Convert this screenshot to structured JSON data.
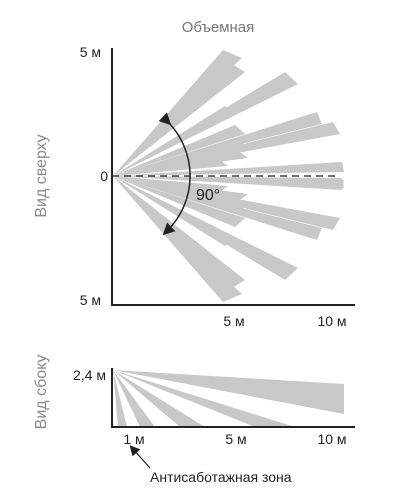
{
  "diagram": {
    "title": "Объемная",
    "top_view": {
      "label": "Вид сверху",
      "y_top": "5 м",
      "y_mid": "0",
      "y_bottom": "5 м",
      "x_ticks": [
        "5 м",
        "10 м"
      ],
      "angle": "90°"
    },
    "side_view": {
      "label": "Вид сбоку",
      "height": "2,4 м",
      "x_ticks": [
        "1 м",
        "5 м",
        "10 м"
      ],
      "anti_tamper": "Антисаботажная зона"
    },
    "colors": {
      "beam": "#c8c8c8",
      "axis": "#222222",
      "text_muted": "#8a8a8a"
    }
  }
}
